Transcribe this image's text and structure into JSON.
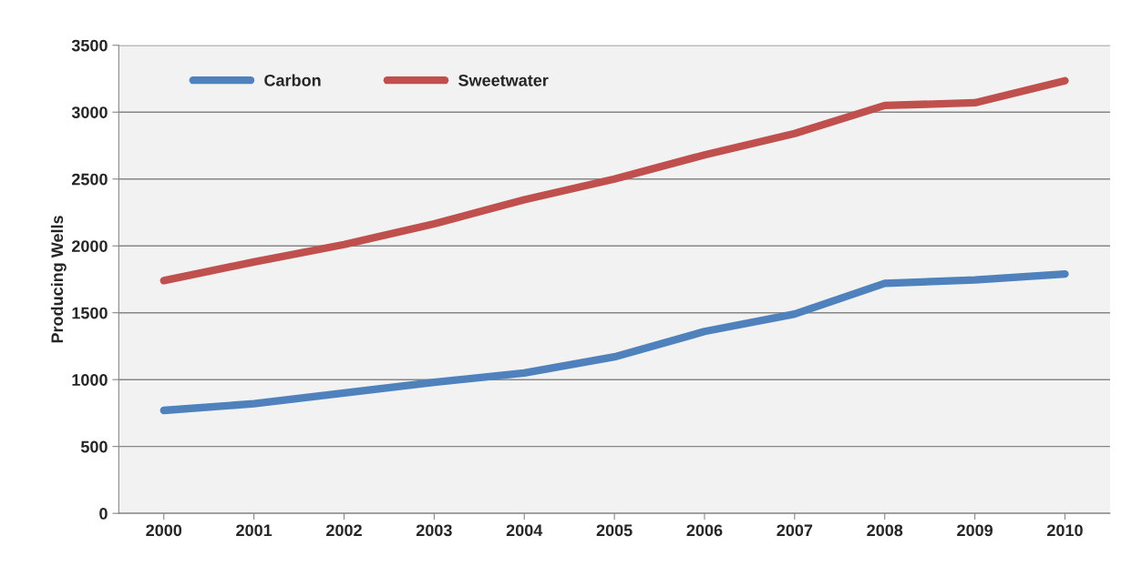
{
  "chart_data": {
    "type": "line",
    "ylabel": "Producing Wells",
    "categories": [
      "2000",
      "2001",
      "2002",
      "2003",
      "2004",
      "2005",
      "2006",
      "2007",
      "2008",
      "2009",
      "2010"
    ],
    "series": [
      {
        "name": "Carbon",
        "color": "#4f81bd",
        "values": [
          770,
          820,
          900,
          980,
          1050,
          1170,
          1360,
          1490,
          1720,
          1745,
          1790
        ]
      },
      {
        "name": "Sweetwater",
        "color": "#c0504d",
        "values": [
          1740,
          1880,
          2010,
          2165,
          2345,
          2500,
          2680,
          2840,
          3050,
          3070,
          3235
        ]
      }
    ],
    "ylim": [
      0,
      3500
    ],
    "yticks": [
      0,
      500,
      1000,
      1500,
      2000,
      2500,
      3000,
      3500
    ],
    "grid": "y",
    "legend": "top left",
    "marker": "none",
    "line_style": "solid"
  }
}
